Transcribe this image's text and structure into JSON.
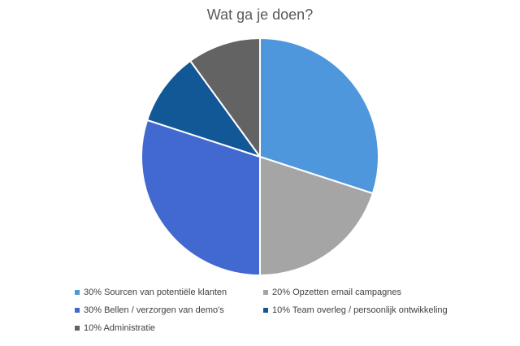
{
  "chart_data": {
    "type": "pie",
    "title": "Wat ga je doen?",
    "series": [
      {
        "name": "Sourcen van potentiële klanten",
        "value": 30,
        "color": "#4e97dc"
      },
      {
        "name": "Opzetten email campagnes",
        "value": 20,
        "color": "#a5a5a5"
      },
      {
        "name": "Bellen / verzorgen van demo's",
        "value": 30,
        "color": "#4169cf"
      },
      {
        "name": "Team overleg / persoonlijk ontwikkeling",
        "value": 10,
        "color": "#135896"
      },
      {
        "name": "Administratie",
        "value": 10,
        "color": "#636363"
      }
    ],
    "legend_labels": [
      "30% Sourcen van potentiële klanten",
      "20% Opzetten email campagnes",
      "30% Bellen / verzorgen van demo's",
      "10% Team overleg / persoonlijk ontwikkeling",
      "10% Administratie"
    ],
    "legend_position": "bottom"
  }
}
